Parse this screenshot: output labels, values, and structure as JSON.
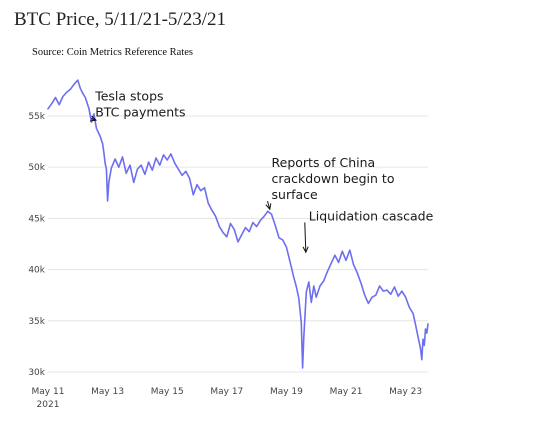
{
  "title": "BTC Price, 5/11/21-5/23/21",
  "source": "Source: Coin Metrics Reference Rates",
  "colors": {
    "line": "#6e6ef0",
    "grid": "#e6e6e6",
    "text": "#222222"
  },
  "chart_data": {
    "type": "line",
    "title": "BTC Price, 5/11/21-5/23/21",
    "xlabel": "",
    "ylabel": "",
    "x_ticks": [
      "May 11",
      "May 13",
      "May 15",
      "May 17",
      "May 19",
      "May 21",
      "May 23"
    ],
    "x_tick_sublabel": "2021",
    "y_ticks": [
      "30k",
      "35k",
      "40k",
      "45k",
      "50k",
      "55k"
    ],
    "y_tick_values": [
      30000,
      35000,
      40000,
      45000,
      50000,
      55000
    ],
    "xlim": [
      "2021-05-11",
      "2021-05-23T18:00"
    ],
    "ylim": [
      30000,
      59000
    ],
    "grid": "horizontal",
    "series": [
      {
        "values": [
          [
            "2021-05-11T00:00",
            55700
          ],
          [
            "2021-05-11T03:00",
            56200
          ],
          [
            "2021-05-11T06:00",
            56800
          ],
          [
            "2021-05-11T09:00",
            56100
          ],
          [
            "2021-05-11T12:00",
            56900
          ],
          [
            "2021-05-11T15:00",
            57300
          ],
          [
            "2021-05-11T18:00",
            57600
          ],
          [
            "2021-05-11T21:00",
            58100
          ],
          [
            "2021-05-12T00:00",
            58500
          ],
          [
            "2021-05-12T02:00",
            57700
          ],
          [
            "2021-05-12T04:00",
            57200
          ],
          [
            "2021-05-12T06:00",
            56800
          ],
          [
            "2021-05-12T09:00",
            55700
          ],
          [
            "2021-05-12T11:00",
            54400
          ],
          [
            "2021-05-12T13:00",
            55200
          ],
          [
            "2021-05-12T15:00",
            53800
          ],
          [
            "2021-05-12T18:00",
            53000
          ],
          [
            "2021-05-12T20:00",
            52300
          ],
          [
            "2021-05-12T21:00",
            51400
          ],
          [
            "2021-05-12T22:00",
            50400
          ],
          [
            "2021-05-12T23:00",
            49800
          ],
          [
            "2021-05-13T00:00",
            46700
          ],
          [
            "2021-05-13T01:00",
            48500
          ],
          [
            "2021-05-13T03:00",
            49900
          ],
          [
            "2021-05-13T06:00",
            50800
          ],
          [
            "2021-05-13T09:00",
            50000
          ],
          [
            "2021-05-13T12:00",
            51000
          ],
          [
            "2021-05-13T15:00",
            49400
          ],
          [
            "2021-05-13T18:00",
            50200
          ],
          [
            "2021-05-13T21:00",
            48500
          ],
          [
            "2021-05-14T00:00",
            49800
          ],
          [
            "2021-05-14T03:00",
            50200
          ],
          [
            "2021-05-14T06:00",
            49300
          ],
          [
            "2021-05-14T09:00",
            50500
          ],
          [
            "2021-05-14T12:00",
            49700
          ],
          [
            "2021-05-14T15:00",
            50900
          ],
          [
            "2021-05-14T18:00",
            50200
          ],
          [
            "2021-05-14T21:00",
            51200
          ],
          [
            "2021-05-15T00:00",
            50700
          ],
          [
            "2021-05-15T03:00",
            51300
          ],
          [
            "2021-05-15T06:00",
            50400
          ],
          [
            "2021-05-15T09:00",
            49800
          ],
          [
            "2021-05-15T12:00",
            49200
          ],
          [
            "2021-05-15T15:00",
            49600
          ],
          [
            "2021-05-15T18:00",
            48900
          ],
          [
            "2021-05-15T21:00",
            47300
          ],
          [
            "2021-05-16T00:00",
            48300
          ],
          [
            "2021-05-16T03:00",
            47700
          ],
          [
            "2021-05-16T06:00",
            48000
          ],
          [
            "2021-05-16T09:00",
            46500
          ],
          [
            "2021-05-16T12:00",
            45800
          ],
          [
            "2021-05-16T15:00",
            45200
          ],
          [
            "2021-05-16T18:00",
            44200
          ],
          [
            "2021-05-16T21:00",
            43600
          ],
          [
            "2021-05-17T00:00",
            43200
          ],
          [
            "2021-05-17T03:00",
            44500
          ],
          [
            "2021-05-17T06:00",
            43900
          ],
          [
            "2021-05-17T09:00",
            42700
          ],
          [
            "2021-05-17T12:00",
            43400
          ],
          [
            "2021-05-17T15:00",
            44100
          ],
          [
            "2021-05-17T18:00",
            43700
          ],
          [
            "2021-05-17T21:00",
            44600
          ],
          [
            "2021-05-18T00:00",
            44200
          ],
          [
            "2021-05-18T03:00",
            44800
          ],
          [
            "2021-05-18T06:00",
            45200
          ],
          [
            "2021-05-18T09:00",
            45700
          ],
          [
            "2021-05-18T12:00",
            45400
          ],
          [
            "2021-05-18T15:00",
            44300
          ],
          [
            "2021-05-18T18:00",
            43100
          ],
          [
            "2021-05-18T21:00",
            42900
          ],
          [
            "2021-05-19T00:00",
            42200
          ],
          [
            "2021-05-19T03:00",
            40700
          ],
          [
            "2021-05-19T06:00",
            39200
          ],
          [
            "2021-05-19T08:00",
            38300
          ],
          [
            "2021-05-19T10:00",
            37200
          ],
          [
            "2021-05-19T12:00",
            34800
          ],
          [
            "2021-05-19T13:00",
            30400
          ],
          [
            "2021-05-19T14:00",
            33400
          ],
          [
            "2021-05-19T16:00",
            37800
          ],
          [
            "2021-05-19T18:00",
            38800
          ],
          [
            "2021-05-19T20:00",
            36800
          ],
          [
            "2021-05-19T22:00",
            38400
          ],
          [
            "2021-05-20T00:00",
            37300
          ],
          [
            "2021-05-20T03:00",
            38400
          ],
          [
            "2021-05-20T06:00",
            38900
          ],
          [
            "2021-05-20T09:00",
            39800
          ],
          [
            "2021-05-20T12:00",
            40600
          ],
          [
            "2021-05-20T15:00",
            41400
          ],
          [
            "2021-05-20T18:00",
            40700
          ],
          [
            "2021-05-20T21:00",
            41800
          ],
          [
            "2021-05-21T00:00",
            40900
          ],
          [
            "2021-05-21T03:00",
            41900
          ],
          [
            "2021-05-21T06:00",
            40500
          ],
          [
            "2021-05-21T09:00",
            39700
          ],
          [
            "2021-05-21T12:00",
            38700
          ],
          [
            "2021-05-21T15:00",
            37500
          ],
          [
            "2021-05-21T18:00",
            36700
          ],
          [
            "2021-05-21T21:00",
            37300
          ],
          [
            "2021-05-22T00:00",
            37500
          ],
          [
            "2021-05-22T03:00",
            38400
          ],
          [
            "2021-05-22T06:00",
            37900
          ],
          [
            "2021-05-22T09:00",
            38000
          ],
          [
            "2021-05-22T12:00",
            37600
          ],
          [
            "2021-05-22T15:00",
            38300
          ],
          [
            "2021-05-22T18:00",
            37400
          ],
          [
            "2021-05-22T21:00",
            37900
          ],
          [
            "2021-05-23T00:00",
            37300
          ],
          [
            "2021-05-23T03:00",
            36300
          ],
          [
            "2021-05-23T06:00",
            35700
          ],
          [
            "2021-05-23T08:00",
            34600
          ],
          [
            "2021-05-23T10:00",
            33400
          ],
          [
            "2021-05-23T12:00",
            32300
          ],
          [
            "2021-05-23T13:00",
            31200
          ],
          [
            "2021-05-23T14:00",
            33200
          ],
          [
            "2021-05-23T15:00",
            32600
          ],
          [
            "2021-05-23T16:00",
            34200
          ],
          [
            "2021-05-23T17:00",
            33800
          ],
          [
            "2021-05-23T18:00",
            34700
          ]
        ]
      }
    ],
    "annotations": [
      {
        "lines": [
          "Tesla stops",
          "BTC payments"
        ],
        "x": "2021-05-12T14:00",
        "y": 56500,
        "arrow_to": [
          "2021-05-12T13:00",
          54400
        ]
      },
      {
        "lines": [
          "Reports of China",
          "crackdown begin to",
          "surface"
        ],
        "x": "2021-05-18T12:00",
        "y": 50000,
        "arrow_to": [
          "2021-05-18T09:00",
          45700
        ]
      },
      {
        "lines": [
          "Liquidation cascade"
        ],
        "x": "2021-05-19T18:00",
        "y": 44800,
        "arrow_to": [
          "2021-05-19T14:00",
          41500
        ]
      }
    ]
  }
}
